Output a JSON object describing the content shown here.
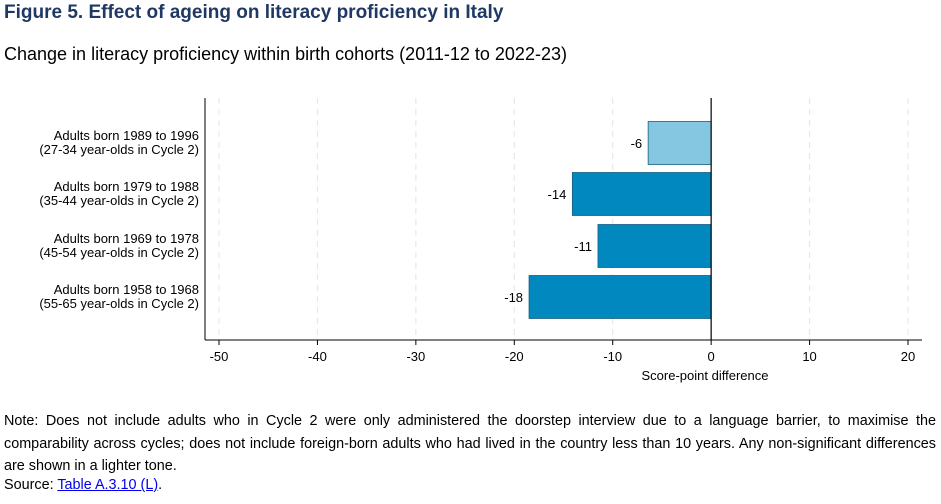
{
  "title": "Figure 5. Effect of ageing on literacy proficiency in Italy",
  "subtitle": "Change in literacy proficiency within birth cohorts (2011-12 to 2022-23)",
  "note": "Note: Does not include adults who in Cycle 2 were only administered the doorstep interview due to a language barrier, to maximise the comparability across cycles; does not include foreign-born adults who had lived in the country less than 10 years. Any non-significant differences are shown in a lighter tone.",
  "source": {
    "label": "Source: ",
    "link_text": "Table A.3.10 (L)",
    "suffix": "."
  },
  "colors": {
    "title": "#1f3864",
    "significant": "#0088bf",
    "non_significant": "#85c7e1"
  },
  "chart_data": {
    "type": "bar",
    "orientation": "horizontal",
    "xlabel": "Score-point difference",
    "xlim": [
      -50,
      20
    ],
    "xticks": [
      -50,
      -40,
      -30,
      -20,
      -10,
      0,
      10,
      20
    ],
    "grid": true,
    "categories": [
      [
        "Adults born 1989 to 1996",
        "(27-34 year-olds in Cycle 2)"
      ],
      [
        "Adults born 1979 to 1988",
        "(35-44 year-olds in Cycle 2)"
      ],
      [
        "Adults born 1969 to 1978",
        "(45-54 year-olds in Cycle 2)"
      ],
      [
        "Adults born 1958 to 1968",
        "(55-65 year-olds in Cycle 2)"
      ]
    ],
    "values": [
      -6.4,
      -14.1,
      -11.5,
      -18.5
    ],
    "value_labels": [
      "-6",
      "-14",
      "-11",
      "-18"
    ],
    "significant": [
      false,
      true,
      true,
      true
    ]
  }
}
